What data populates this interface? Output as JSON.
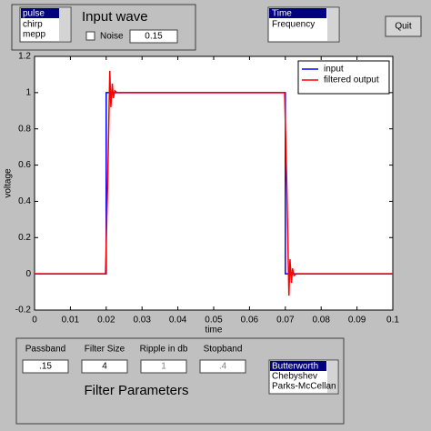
{
  "top_panel": {
    "wave_list": [
      "pulse",
      "chirp",
      "mepp"
    ],
    "title": "Input wave",
    "noise_label": "Noise",
    "noise_value": "0.15"
  },
  "view_list": [
    "Time",
    "Frequency"
  ],
  "quit": "Quit",
  "chart_data": {
    "type": "line",
    "xlabel": "time",
    "ylabel": "voltage",
    "xlim": [
      0,
      0.1
    ],
    "xticks": [
      0,
      0.01,
      0.02,
      0.03,
      0.04,
      0.05,
      0.06,
      0.07,
      0.08,
      0.09,
      0.1
    ],
    "ylim": [
      -0.2,
      1.2
    ],
    "yticks": [
      -0.2,
      0,
      0.2,
      0.4,
      0.6,
      0.8,
      1,
      1.2
    ],
    "legend": "upper right",
    "series": [
      {
        "name": "input",
        "color": "#0000ff",
        "x": [
          0,
          0.02,
          0.02,
          0.07,
          0.07,
          0.1
        ],
        "values": [
          0,
          0,
          1,
          1,
          0,
          0
        ]
      },
      {
        "name": "filtered output",
        "color": "#ff0000",
        "x": [
          0,
          0.0198,
          0.0204,
          0.021,
          0.0213,
          0.0217,
          0.022,
          0.0224,
          0.023,
          0.024,
          0.0698,
          0.0704,
          0.071,
          0.0713,
          0.0717,
          0.072,
          0.0724,
          0.073,
          0.074,
          0.1
        ],
        "values": [
          0,
          0,
          0.5,
          1.12,
          0.92,
          1.05,
          0.97,
          1.01,
          1,
          1,
          1,
          0.5,
          -0.12,
          0.08,
          -0.05,
          0.03,
          -0.01,
          0,
          0,
          0
        ]
      }
    ]
  },
  "filter_panel": {
    "labels": [
      "Passband",
      "Filter Size",
      "Ripple in db",
      "Stopband"
    ],
    "values": [
      ".15",
      "4",
      "1",
      ".4"
    ],
    "title": "Filter Parameters",
    "filter_list": [
      "Butterworth",
      "Chebyshev",
      "Parks-McCellan"
    ]
  }
}
